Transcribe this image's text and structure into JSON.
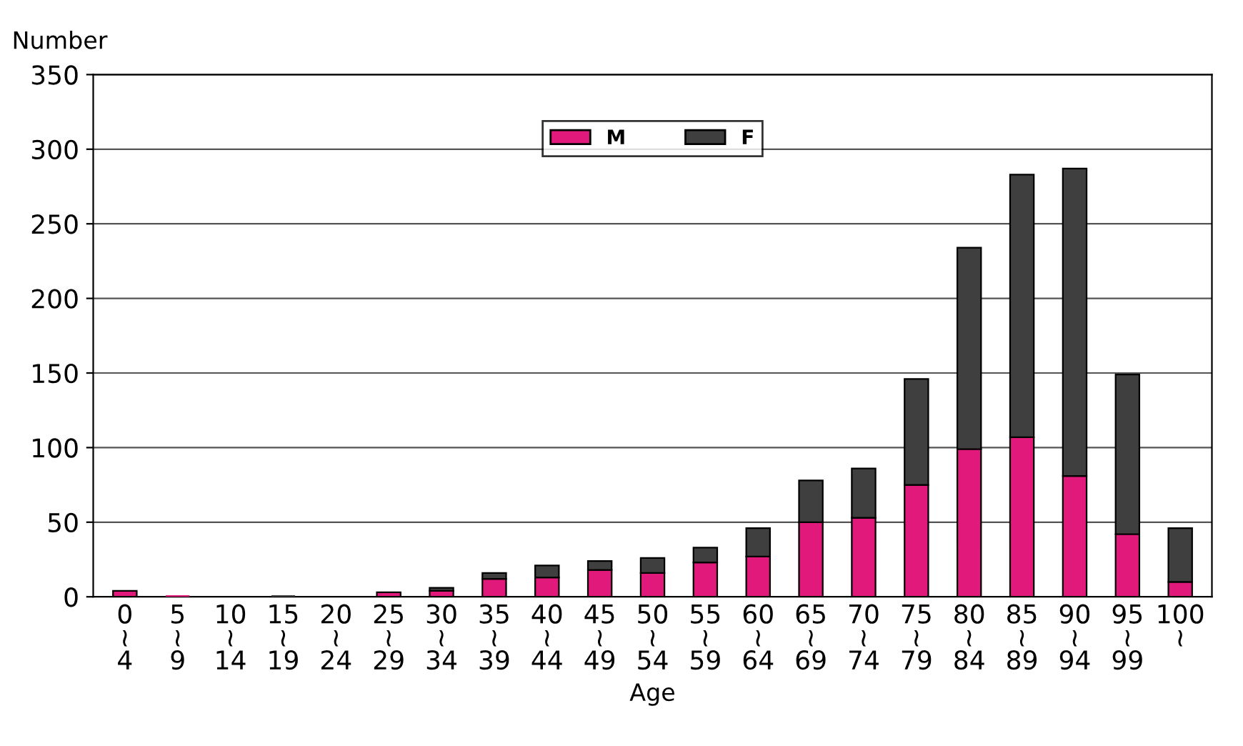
{
  "chart_data": {
    "type": "bar",
    "stacked": true,
    "xlabel": "Age",
    "ylabel": "Number",
    "categories": [
      "0\n≀\n4",
      "5\n≀\n9",
      "10\n≀\n14",
      "15\n≀\n19",
      "20\n≀\n24",
      "25\n≀\n29",
      "30\n≀\n34",
      "35\n≀\n39",
      "40\n≀\n44",
      "45\n≀\n49",
      "50\n≀\n54",
      "55\n≀\n59",
      "60\n≀\n64",
      "65\n≀\n69",
      "70\n≀\n74",
      "75\n≀\n79",
      "80\n≀\n84",
      "85\n≀\n89",
      "90\n≀\n94",
      "95\n≀\n99",
      "100\n≀"
    ],
    "series": [
      {
        "name": "M",
        "color": "#e0197a",
        "values": [
          4,
          1,
          0,
          0,
          0,
          3,
          4,
          12,
          13,
          18,
          16,
          23,
          27,
          50,
          53,
          75,
          99,
          107,
          81,
          42,
          10
        ]
      },
      {
        "name": "F",
        "color": "#3f3f3f",
        "values": [
          0,
          0,
          0,
          1,
          0,
          0,
          2,
          4,
          8,
          6,
          10,
          10,
          19,
          28,
          33,
          71,
          135,
          176,
          206,
          107,
          36
        ]
      }
    ],
    "ylim": [
      0,
      350
    ],
    "yticks": [
      0,
      50,
      100,
      150,
      200,
      250,
      300,
      350
    ],
    "grid": "y",
    "legend": "top"
  }
}
